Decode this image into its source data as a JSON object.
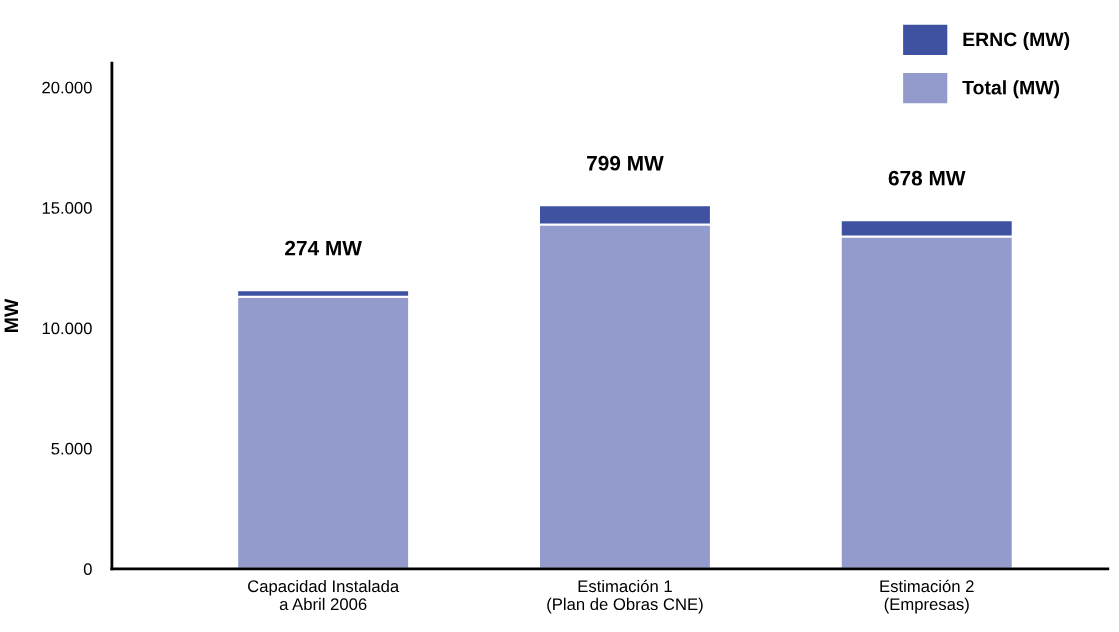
{
  "chart_data": {
    "type": "bar",
    "stacked": true,
    "ylabel": "MW",
    "categories": [
      "Capacidad Instalada\na Abril 2006",
      "Estimación 1\n(Plan de Obras CNE)",
      "Estimación 2\n(Empresas)"
    ],
    "series": [
      {
        "name": "Total (MW)",
        "color": "#929bcc",
        "values": [
          11300,
          14300,
          13800
        ]
      },
      {
        "name": "ERNC (MW)",
        "color": "#3f52a2",
        "values": [
          274,
          799,
          678
        ],
        "value_labels": [
          "274 MW",
          "799 MW",
          "678 MW"
        ]
      }
    ],
    "ylim": [
      0,
      21000
    ],
    "yticks": [
      0,
      {
        "value": 5000,
        "label": "5.000"
      },
      {
        "value": 10000,
        "label": "10.000"
      },
      {
        "value": 15000,
        "label": "15.000"
      },
      {
        "value": 20000,
        "label": "20.000"
      }
    ],
    "grid": false,
    "legend": "top right"
  }
}
